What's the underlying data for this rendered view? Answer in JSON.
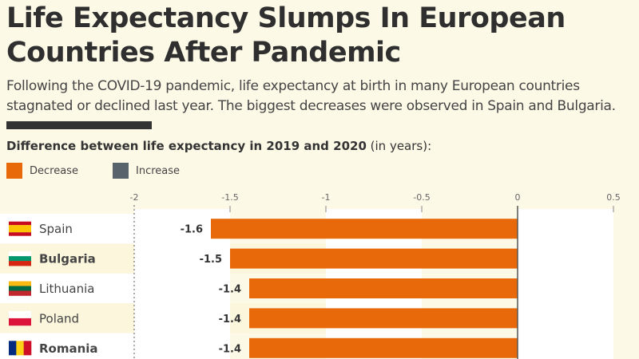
{
  "title_line1": "Life Expectancy Slumps In European",
  "title_line2": "Countries After Pandemic",
  "subtitle": "Following the COVID-19 pandemic, life expectancy at birth in many European countries stagnated or declined last year. The biggest decreases were observed in Spain and Bulgaria.",
  "chart_label_bold": "Difference between life expectancy in 2019 and 2020",
  "chart_label_unit": " (in years):",
  "legend": [
    {
      "label": "Decrease",
      "color": "#e8690a"
    },
    {
      "label": "Increase",
      "color": "#58636b"
    }
  ],
  "chart_data": {
    "type": "bar",
    "orientation": "horizontal",
    "categories": [
      "Spain",
      "Bulgaria",
      "Lithuania",
      "Poland",
      "Romania"
    ],
    "values": [
      -1.6,
      -1.5,
      -1.4,
      -1.4,
      -1.4
    ],
    "data_labels": [
      "-1.6",
      "-1.5",
      "-1.4",
      "-1.4",
      "-1.4"
    ],
    "bold_categories": [
      "Bulgaria",
      "Romania"
    ],
    "xlim": [
      -2,
      0.5
    ],
    "xticks": [
      -2,
      -1.5,
      -1,
      -0.5,
      0,
      0.5
    ],
    "xtick_labels": [
      "-2",
      "-1.5",
      "-1",
      "-0.5",
      "0",
      "0.5"
    ],
    "flags": {
      "Spain": [
        "#c60b1e",
        "#ffc400",
        "#c60b1e"
      ],
      "Bulgaria": [
        "#ffffff",
        "#00966e",
        "#d62612"
      ],
      "Lithuania": [
        "#fdb913",
        "#006a44",
        "#c1272d"
      ],
      "Poland": [
        "#ffffff",
        "#dc143c"
      ],
      "Romania": [
        "#002b7f",
        "#fcd116",
        "#ce1126"
      ]
    },
    "bar_color": "#e8690a"
  }
}
